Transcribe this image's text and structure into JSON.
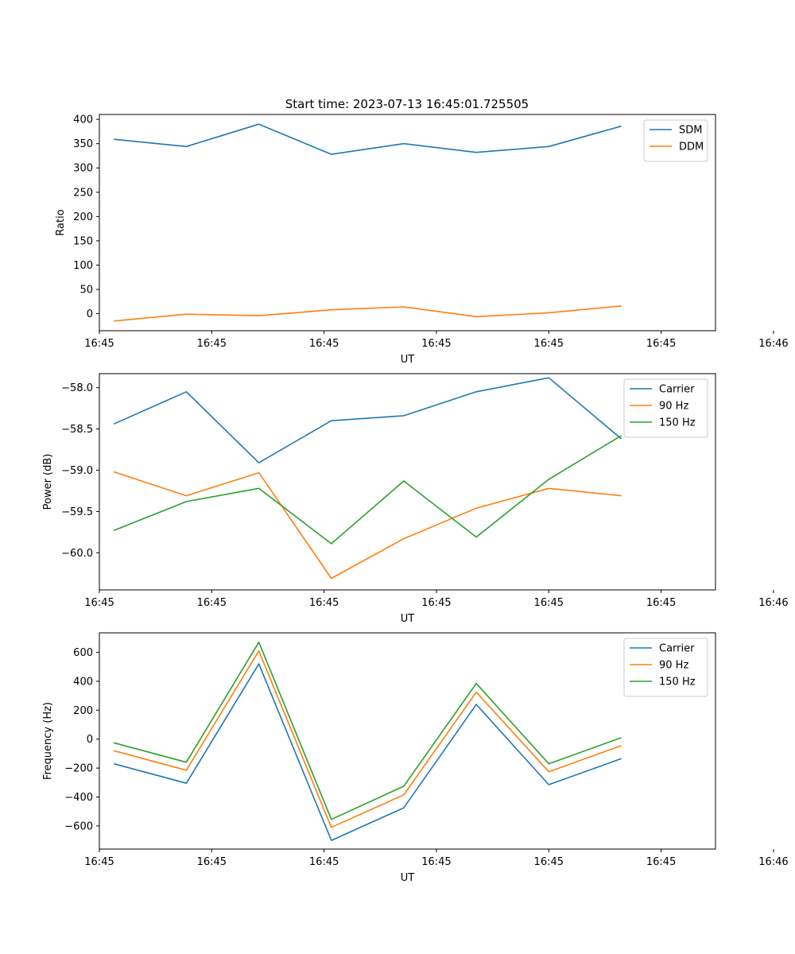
{
  "figure": {
    "title": "Start time: 2023-07-13 16:45:01.725505"
  },
  "colors": {
    "blue": "#1f77b4",
    "orange": "#ff7f0e",
    "green": "#2ca02c"
  },
  "chart_data": [
    {
      "type": "line",
      "title": "Start time: 2023-07-13 16:45:01.725505",
      "xlabel": "UT",
      "ylabel": "Ratio",
      "x": [
        1,
        2,
        3,
        4,
        5,
        6,
        7,
        8
      ],
      "xlim": [
        0.8,
        9.3
      ],
      "x_ticks": [
        0.8,
        2.35,
        3.9,
        5.45,
        7.0,
        8.55,
        10.1
      ],
      "x_tick_labels": [
        "16:45",
        "16:45",
        "16:45",
        "16:45",
        "16:45",
        "16:45",
        "16:46"
      ],
      "ylim": [
        -35,
        410
      ],
      "y_ticks": [
        0,
        50,
        100,
        150,
        200,
        250,
        300,
        350,
        400
      ],
      "y_tick_labels": [
        "0",
        "50",
        "100",
        "150",
        "200",
        "250",
        "300",
        "350",
        "400"
      ],
      "legend_position": "top-right",
      "series": [
        {
          "name": "SDM",
          "color": "#1f77b4",
          "values": [
            359,
            344,
            390,
            328,
            350,
            332,
            344,
            386
          ]
        },
        {
          "name": "DDM",
          "color": "#ff7f0e",
          "values": [
            -15,
            -1,
            -4,
            8,
            14,
            -6,
            2,
            16
          ]
        }
      ]
    },
    {
      "type": "line",
      "title": "",
      "xlabel": "UT",
      "ylabel": "Power (dB)",
      "x": [
        1,
        2,
        3,
        4,
        5,
        6,
        7,
        8
      ],
      "xlim": [
        0.8,
        9.3
      ],
      "x_ticks": [
        0.8,
        2.35,
        3.9,
        5.45,
        7.0,
        8.55,
        10.1
      ],
      "x_tick_labels": [
        "16:45",
        "16:45",
        "16:45",
        "16:45",
        "16:45",
        "16:45",
        "16:46"
      ],
      "ylim": [
        -60.45,
        -57.83
      ],
      "y_ticks": [
        -60.0,
        -59.5,
        -59.0,
        -58.5,
        -58.0
      ],
      "y_tick_labels": [
        "−60.0",
        "−59.5",
        "−59.0",
        "−58.5",
        "−58.0"
      ],
      "legend_position": "top-right",
      "series": [
        {
          "name": "Carrier",
          "color": "#1f77b4",
          "values": [
            -58.44,
            -58.05,
            -58.91,
            -58.4,
            -58.34,
            -58.05,
            -57.88,
            -58.62
          ]
        },
        {
          "name": "90 Hz",
          "color": "#ff7f0e",
          "values": [
            -59.02,
            -59.31,
            -59.03,
            -60.31,
            -59.83,
            -59.46,
            -59.22,
            -59.31
          ]
        },
        {
          "name": "150 Hz",
          "color": "#2ca02c",
          "values": [
            -59.73,
            -59.38,
            -59.22,
            -59.89,
            -59.13,
            -59.81,
            -59.11,
            -58.58
          ]
        }
      ]
    },
    {
      "type": "line",
      "title": "",
      "xlabel": "UT",
      "ylabel": "Frequency (Hz)",
      "x": [
        1,
        2,
        3,
        4,
        5,
        6,
        7,
        8
      ],
      "xlim": [
        0.8,
        9.3
      ],
      "x_ticks": [
        0.8,
        2.35,
        3.9,
        5.45,
        7.0,
        8.55,
        10.1
      ],
      "x_tick_labels": [
        "16:45",
        "16:45",
        "16:45",
        "16:45",
        "16:45",
        "16:45",
        "16:46"
      ],
      "ylim": [
        -760,
        735
      ],
      "y_ticks": [
        -600,
        -400,
        -200,
        0,
        200,
        400,
        600
      ],
      "y_tick_labels": [
        "−600",
        "−400",
        "−200",
        "0",
        "200",
        "400",
        "600"
      ],
      "legend_position": "top-right",
      "series": [
        {
          "name": "Carrier",
          "color": "#1f77b4",
          "values": [
            -170,
            -305,
            520,
            -700,
            -475,
            240,
            -315,
            -135
          ]
        },
        {
          "name": "90 Hz",
          "color": "#ff7f0e",
          "values": [
            -80,
            -215,
            610,
            -610,
            -385,
            325,
            -225,
            -45
          ]
        },
        {
          "name": "150 Hz",
          "color": "#2ca02c",
          "values": [
            -25,
            -160,
            670,
            -555,
            -325,
            385,
            -170,
            10
          ]
        }
      ]
    }
  ]
}
